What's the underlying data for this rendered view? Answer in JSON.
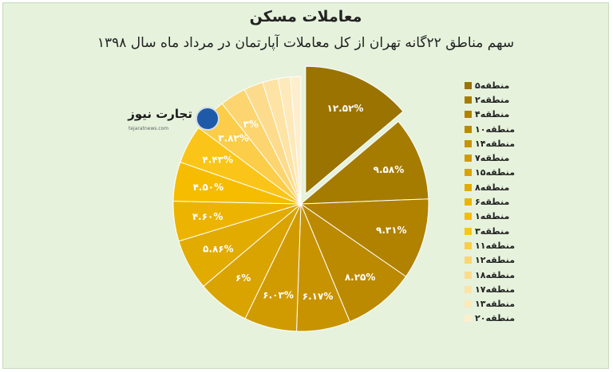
{
  "header": {
    "title": "معاملات مسکن",
    "subtitle": "سهم مناطق ۲۲گانه تهران از کل معاملات آپارتمان در مرداد ماه سال ۱۳۹۸"
  },
  "logo": {
    "text": "تجارت نیوز",
    "url": "tejaratnews.com"
  },
  "chart_data": {
    "type": "pie",
    "title": "سهم مناطق ۲۲گانه تهران از کل معاملات آپارتمان در مرداد ماه سال ۱۳۹۸",
    "legend_position": "right",
    "categories": [
      "منطقه۵",
      "منطقه۲",
      "منطقه۴",
      "منطقه۱۰",
      "منطقه۱۴",
      "منطقه۷",
      "منطقه۱۵",
      "منطقه۸",
      "منطقه۶",
      "منطقه۱",
      "منطقه۳",
      "منطقه۱۱",
      "منطقه۱۲",
      "منطقه۱۸",
      "منطقه۱۷",
      "منطقه۱۳",
      "منطقه۲۰"
    ],
    "values": [
      12.52,
      9.58,
      9.31,
      8.25,
      6.17,
      6.03,
      6,
      5.86,
      4.6,
      4.5,
      4.43,
      3.82,
      3,
      2.2,
      1.8,
      1.4,
      1.2
    ],
    "labels": [
      "۱۲.۵۲%",
      "۹.۵۸%",
      "۹.۳۱%",
      "۸.۲۵%",
      "۶.۱۷%",
      "۶.۰۳%",
      "۶%",
      "۵.۸۶%",
      "۴.۶۰%",
      "۴.۵۰%",
      "۴.۴۳%",
      "۳.۸۲%",
      "۳%",
      "",
      "",
      "",
      ""
    ],
    "colors": [
      "#9a7300",
      "#a67c00",
      "#b08200",
      "#bb8a00",
      "#c79300",
      "#d09b00",
      "#d9a300",
      "#e2ab00",
      "#ecb400",
      "#f6bc00",
      "#fac518",
      "#fbcd48",
      "#fcd570",
      "#fcdc8c",
      "#fde3a4",
      "#fde9ba",
      "#fdeecd"
    ],
    "exploded_index": 0
  }
}
